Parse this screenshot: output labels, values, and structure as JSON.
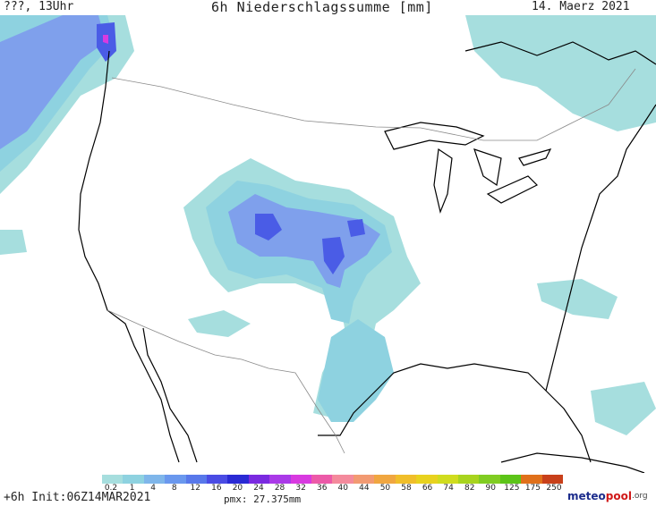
{
  "header": {
    "left": "???, 13Uhr",
    "title": "6h Niederschlagssumme [mm]",
    "date": "14. Maerz 2021"
  },
  "footer": {
    "run_info": "+6h  Init:06Z14MAR2021",
    "pmx": "pmx: 27.375mm",
    "brand_main": "meteo",
    "brand_accent": "pool",
    "brand_suffix": ".org"
  },
  "legend": {
    "labels": [
      "0.2",
      "1",
      "4",
      "8",
      "12",
      "16",
      "20",
      "24",
      "28",
      "32",
      "36",
      "40",
      "44",
      "50",
      "58",
      "66",
      "74",
      "82",
      "90",
      "125",
      "175",
      "250"
    ],
    "colors": [
      "#a6dede",
      "#8ed2e0",
      "#7fb6ea",
      "#6a98ee",
      "#5878ea",
      "#4a4ce4",
      "#2a2ad4",
      "#7a2ae0",
      "#aa3ae8",
      "#d83ae0",
      "#ec5aa8",
      "#f48a9c",
      "#f29a72",
      "#f0a640",
      "#f0be2a",
      "#e8d21e",
      "#d0dc1e",
      "#a8d41e",
      "#80cc22",
      "#5cc418",
      "#e0701a",
      "#c8401a"
    ]
  },
  "map": {
    "precip_light": "#a6dede",
    "precip_mid": "#8ed2e0",
    "precip_heavy": "#7fa0ec",
    "precip_max": "#4a5ce6",
    "coast_color": "#000000",
    "border_color": "#8a8a8a"
  }
}
